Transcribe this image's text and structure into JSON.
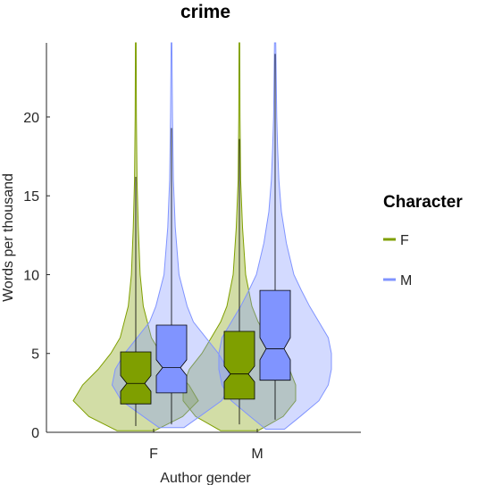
{
  "chart_data": {
    "type": "violin",
    "title": "crime",
    "xlabel": "Author gender",
    "ylabel": "Words per thousand",
    "categories": [
      "F",
      "M"
    ],
    "ylim": [
      0,
      24.7
    ],
    "yticks": [
      0,
      5,
      10,
      15,
      20
    ],
    "grid": false,
    "legend": {
      "title": "Character",
      "placement": "right",
      "entries": [
        {
          "label": "F",
          "color": "#7f9f00"
        },
        {
          "label": "M",
          "color": "#8094ff"
        }
      ]
    },
    "series": [
      {
        "name": "F",
        "color": "#7f9f00",
        "groups": [
          {
            "category": "F",
            "box": {
              "q1": 1.8,
              "median": 3.1,
              "q3": 5.1,
              "notch_low": 2.6,
              "notch_high": 3.6,
              "whisker_low": 0.4,
              "whisker_high": 16.2
            },
            "violin": [
              [
                0.1,
                0.3
              ],
              [
                1.0,
                0.75
              ],
              [
                2.0,
                1.0
              ],
              [
                3.0,
                0.85
              ],
              [
                4.0,
                0.6
              ],
              [
                5.0,
                0.4
              ],
              [
                6.0,
                0.25
              ],
              [
                8.0,
                0.12
              ],
              [
                10.0,
                0.07
              ],
              [
                13.0,
                0.04
              ],
              [
                16.0,
                0.02
              ],
              [
                20.0,
                0.01
              ],
              [
                24.7,
                0.006
              ]
            ]
          },
          {
            "category": "M",
            "box": {
              "q1": 2.1,
              "median": 3.7,
              "q3": 6.4,
              "notch_low": 3.2,
              "notch_high": 4.2,
              "whisker_low": 0.5,
              "whisker_high": 18.6
            },
            "violin": [
              [
                0.1,
                0.3
              ],
              [
                1.0,
                0.7
              ],
              [
                2.0,
                0.9
              ],
              [
                3.0,
                0.9
              ],
              [
                4.0,
                0.8
              ],
              [
                5.0,
                0.6
              ],
              [
                6.0,
                0.45
              ],
              [
                7.0,
                0.3
              ],
              [
                8.0,
                0.2
              ],
              [
                10.0,
                0.1
              ],
              [
                13.0,
                0.05
              ],
              [
                16.0,
                0.02
              ],
              [
                20.0,
                0.01
              ],
              [
                24.7,
                0.006
              ]
            ]
          }
        ]
      },
      {
        "name": "M",
        "color": "#8094ff",
        "groups": [
          {
            "category": "F",
            "box": {
              "q1": 2.5,
              "median": 4.1,
              "q3": 6.8,
              "notch_low": 3.6,
              "notch_high": 4.6,
              "whisker_low": 0.5,
              "whisker_high": 19.3
            },
            "violin": [
              [
                0.3,
                0.2
              ],
              [
                1.0,
                0.45
              ],
              [
                2.0,
                0.8
              ],
              [
                3.0,
                0.95
              ],
              [
                4.0,
                0.9
              ],
              [
                5.0,
                0.75
              ],
              [
                6.0,
                0.55
              ],
              [
                7.0,
                0.35
              ],
              [
                8.0,
                0.25
              ],
              [
                10.0,
                0.12
              ],
              [
                13.0,
                0.06
              ],
              [
                16.0,
                0.03
              ],
              [
                20.0,
                0.015
              ],
              [
                24.7,
                0.006
              ]
            ]
          },
          {
            "category": "M",
            "box": {
              "q1": 3.3,
              "median": 5.3,
              "q3": 9.0,
              "notch_low": 4.6,
              "notch_high": 6.0,
              "whisker_low": 0.8,
              "whisker_high": 24.0
            },
            "violin": [
              [
                0.2,
                0.15
              ],
              [
                1.0,
                0.4
              ],
              [
                2.0,
                0.7
              ],
              [
                3.0,
                0.85
              ],
              [
                4.0,
                0.9
              ],
              [
                5.0,
                0.9
              ],
              [
                6.0,
                0.85
              ],
              [
                7.0,
                0.7
              ],
              [
                8.0,
                0.55
              ],
              [
                9.0,
                0.42
              ],
              [
                10.0,
                0.3
              ],
              [
                12.0,
                0.18
              ],
              [
                14.0,
                0.1
              ],
              [
                16.0,
                0.06
              ],
              [
                18.0,
                0.04
              ],
              [
                20.0,
                0.025
              ],
              [
                24.7,
                0.01
              ]
            ]
          }
        ]
      }
    ]
  }
}
